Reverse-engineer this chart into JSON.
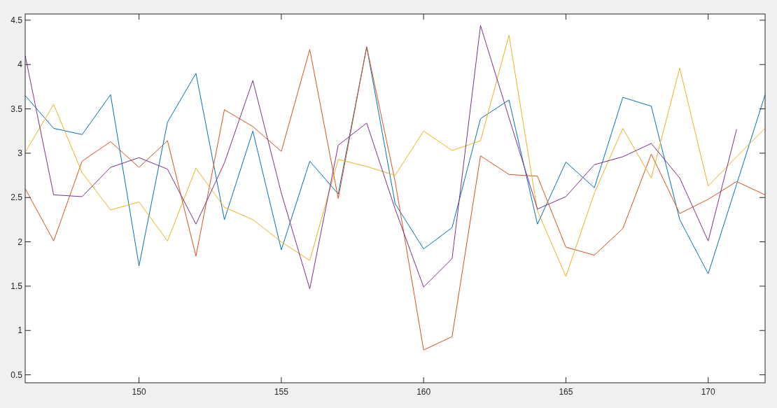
{
  "chart_data": {
    "type": "line",
    "x": [
      146,
      147,
      148,
      149,
      150,
      151,
      152,
      153,
      154,
      155,
      156,
      157,
      158,
      159,
      160,
      161,
      162,
      163,
      164,
      165,
      166,
      167,
      168,
      169,
      170,
      171,
      172
    ],
    "series": [
      {
        "color": "#0072bd",
        "values": [
          3.65,
          3.28,
          3.21,
          3.66,
          1.73,
          3.35,
          3.9,
          2.25,
          3.25,
          1.91,
          2.91,
          2.54,
          4.2,
          2.43,
          1.92,
          2.16,
          3.39,
          3.6,
          2.2,
          2.9,
          2.61,
          3.63,
          3.53,
          2.25,
          1.64,
          2.65,
          3.66
        ]
      },
      {
        "color": "#d95319",
        "values": [
          2.6,
          2.01,
          2.91,
          3.13,
          2.84,
          3.14,
          1.84,
          3.49,
          3.3,
          3.02,
          4.17,
          2.49,
          4.2,
          2.68,
          0.78,
          0.93,
          2.97,
          2.76,
          2.74,
          1.94,
          1.85,
          2.15,
          2.99,
          2.32,
          2.48,
          2.68,
          2.53
        ]
      },
      {
        "color": "#edb120",
        "values": [
          3.01,
          3.55,
          2.78,
          2.36,
          2.45,
          2.01,
          2.83,
          2.39,
          2.25,
          2.0,
          1.79,
          2.93,
          2.85,
          2.75,
          3.25,
          3.03,
          3.14,
          4.33,
          2.35,
          1.61,
          2.55,
          3.28,
          2.72,
          3.96,
          2.63,
          2.96,
          3.28
        ]
      },
      {
        "color": "#7e2f8e",
        "values": [
          4.1,
          2.53,
          2.51,
          2.84,
          2.95,
          2.82,
          2.2,
          2.89,
          3.82,
          2.55,
          1.47,
          3.09,
          3.34,
          2.37,
          1.49,
          1.81,
          4.44,
          3.4,
          2.37,
          2.51,
          2.87,
          2.96,
          3.11,
          2.72,
          2.01,
          3.27,
          null
        ]
      }
    ],
    "xlim": [
      146,
      172
    ],
    "ylim": [
      0.41,
      4.57
    ],
    "xticks": [
      150,
      155,
      160,
      165,
      170
    ],
    "yticks": [
      0.5,
      1,
      1.5,
      2,
      2.5,
      3,
      3.5,
      4,
      4.5
    ],
    "grid": false,
    "marker": "none",
    "line_style": "solid"
  }
}
